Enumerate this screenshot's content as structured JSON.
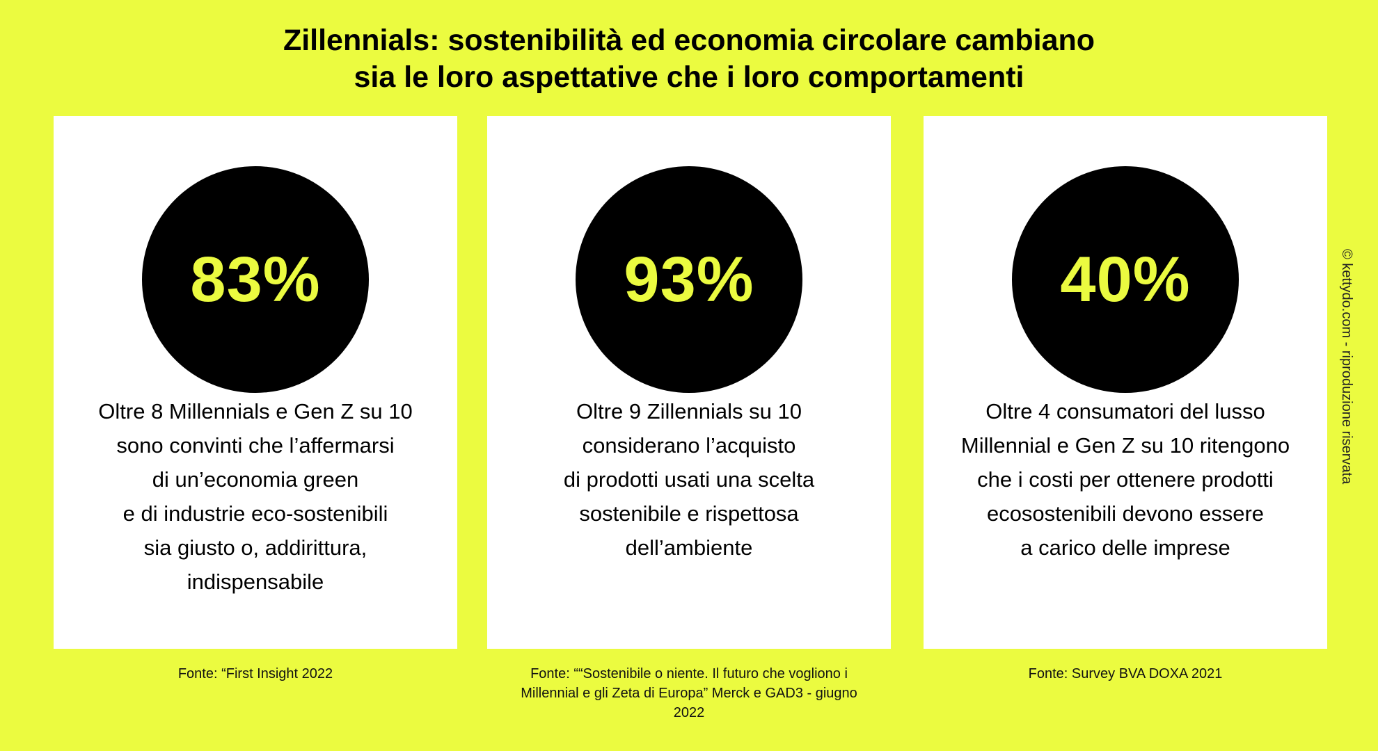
{
  "title": {
    "line1": "Zillennials: sostenibilità ed economia circolare cambiano",
    "line2": "sia le loro aspettative che i loro comportamenti"
  },
  "cards": [
    {
      "percent": "83%",
      "description": [
        "Oltre 8 Millennials e Gen Z su 10",
        "sono convinti che l’affermarsi",
        "di un’economia green",
        "e di industrie eco-sostenibili",
        "sia giusto o, addirittura,",
        "indispensabile"
      ],
      "source": [
        "Fonte: “First Insight 2022"
      ]
    },
    {
      "percent": "93%",
      "description": [
        "Oltre 9  Zillennials su 10",
        "considerano l’acquisto",
        "di prodotti usati una scelta",
        "sostenibile e rispettosa",
        "dell’ambiente"
      ],
      "source": [
        "Fonte: ““Sostenibile o niente. Il futuro che vogliono i",
        "Millennial e gli Zeta di Europa” Merck e GAD3 - giugno",
        "2022"
      ]
    },
    {
      "percent": "40%",
      "description": [
        "Oltre 4 consumatori del lusso",
        "Millennial e Gen Z su 10 ritengono",
        "che i costi per ottenere prodotti",
        "ecosostenibili devono essere",
        "a carico delle imprese"
      ],
      "source": [
        "Fonte: Survey BVA DOXA 2021"
      ]
    }
  ],
  "credit": "© kettydo.com - riproduzione riservata",
  "colors": {
    "background": "#ebfb40",
    "circle": "#000000",
    "card": "#ffffff"
  }
}
